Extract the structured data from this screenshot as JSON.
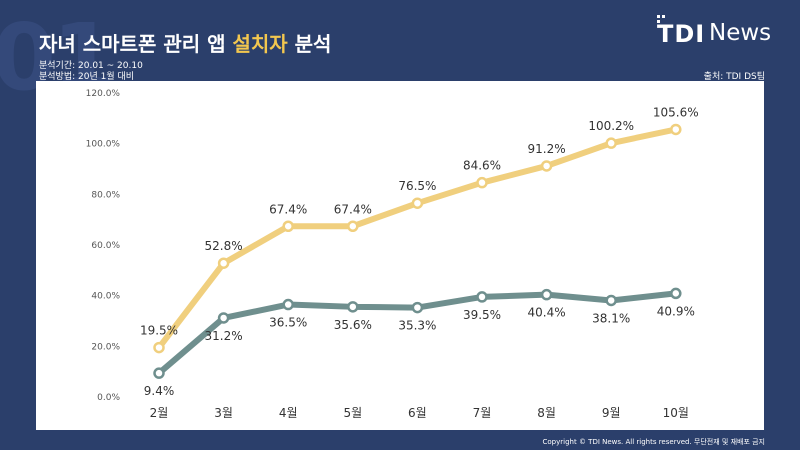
{
  "watermark": "01",
  "title": {
    "pre": "자녀 스마트폰 관리 앱 ",
    "highlight": "설치자",
    "post": " 분석"
  },
  "meta": {
    "period": "분석기간: 20.01 ~ 20.10",
    "method": "분석방법: 20년 1월 대비"
  },
  "source": "출처: TDI DS팀",
  "logo": {
    "tdi": "TDI",
    "news": "News"
  },
  "copyright": "Copyright © TDI News. All rights reserved. 무단전재 및 재배포 금지",
  "colors": {
    "background": "#2b3f6b",
    "highlight": "#f3c74f",
    "series1": "#f0cf7e",
    "series2": "#6f8f8e"
  },
  "chart_data": {
    "type": "line",
    "categories": [
      "2월",
      "3월",
      "4월",
      "5월",
      "6월",
      "7월",
      "8월",
      "9월",
      "10월"
    ],
    "yticks": [
      "0.0%",
      "20.0%",
      "40.0%",
      "60.0%",
      "80.0%",
      "100.0%",
      "120.0%"
    ],
    "ylim": [
      0,
      120
    ],
    "grid": false,
    "legend": "none",
    "series": [
      {
        "values": [
          19.5,
          52.8,
          67.4,
          67.4,
          76.5,
          84.6,
          91.2,
          100.2,
          105.6
        ],
        "labels": [
          "19.5%",
          "52.8%",
          "67.4%",
          "67.4%",
          "76.5%",
          "84.6%",
          "91.2%",
          "100.2%",
          "105.6%"
        ],
        "label_position": "above",
        "color": "#f0cf7e"
      },
      {
        "values": [
          9.4,
          31.2,
          36.5,
          35.6,
          35.3,
          39.5,
          40.4,
          38.1,
          40.9
        ],
        "labels": [
          "9.4%",
          "31.2%",
          "36.5%",
          "35.6%",
          "35.3%",
          "39.5%",
          "40.4%",
          "38.1%",
          "40.9%"
        ],
        "label_position": "below",
        "color": "#6f8f8e"
      }
    ]
  }
}
